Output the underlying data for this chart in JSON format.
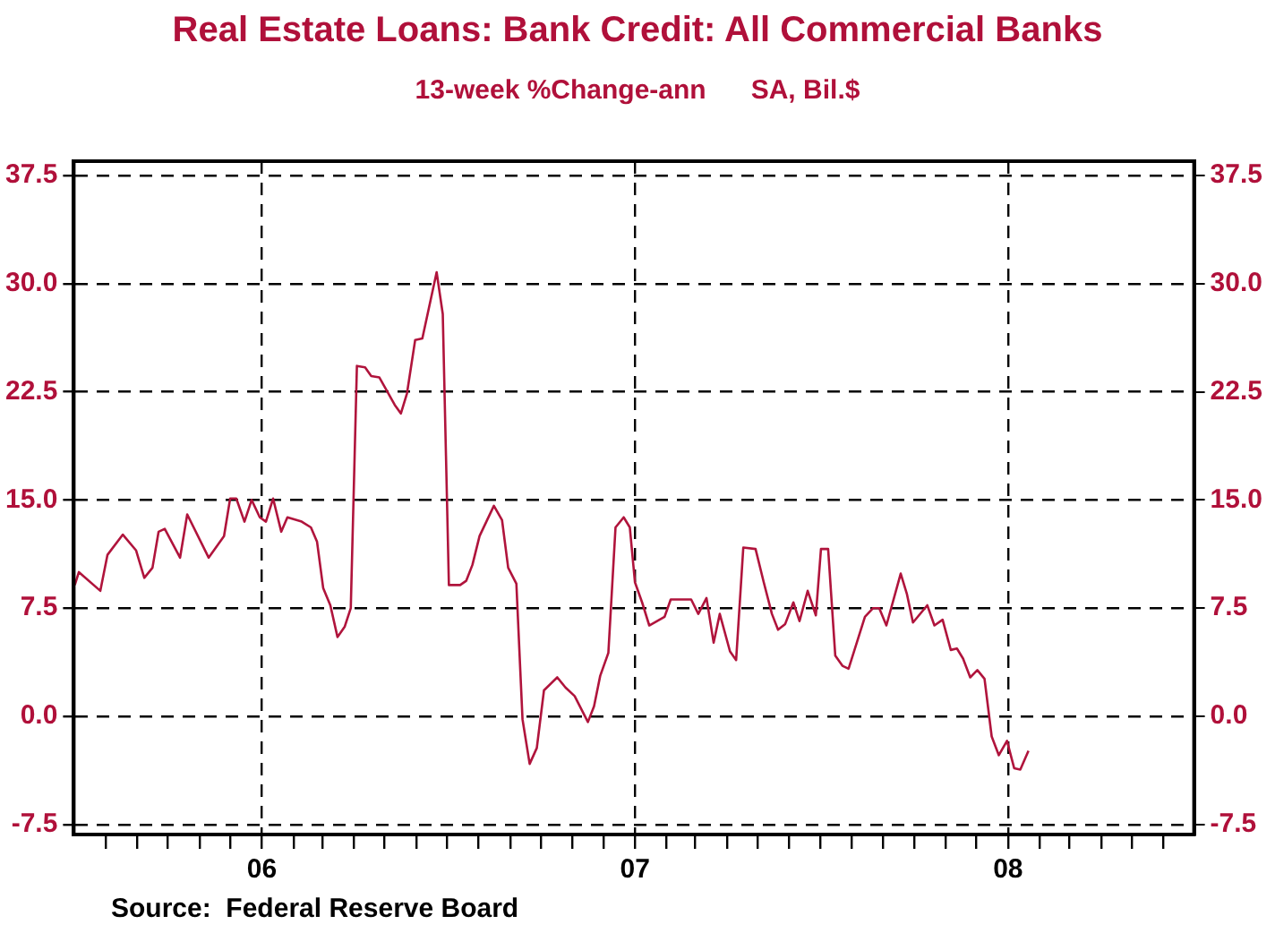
{
  "chart_data": {
    "type": "line",
    "title": "Real Estate Loans: Bank Credit: All Commercial Banks",
    "subtitle": "13-week %Change-ann      SA, Bil.$",
    "x": [
      "2005-07-02",
      "2005-07-06",
      "2005-07-27",
      "2005-08-03",
      "2005-08-18",
      "2005-08-31",
      "2005-09-08",
      "2005-09-16",
      "2005-09-22",
      "2005-09-28",
      "2005-10-13",
      "2005-10-20",
      "2005-11-10",
      "2005-11-25",
      "2005-12-01",
      "2005-12-07",
      "2005-12-15",
      "2005-12-22",
      "2005-12-30",
      "2006-01-05",
      "2006-01-12",
      "2006-01-20",
      "2006-01-26",
      "2006-02-09",
      "2006-02-18",
      "2006-02-24",
      "2006-03-02",
      "2006-03-09",
      "2006-03-16",
      "2006-03-23",
      "2006-03-29",
      "2006-04-04",
      "2006-04-12",
      "2006-04-18",
      "2006-04-26",
      "2006-05-11",
      "2006-05-17",
      "2006-05-23",
      "2006-05-31",
      "2006-06-07",
      "2006-06-21",
      "2006-06-27",
      "2006-07-03",
      "2006-07-14",
      "2006-07-20",
      "2006-07-26",
      "2006-08-02",
      "2006-08-16",
      "2006-08-24",
      "2006-08-30",
      "2006-09-07",
      "2006-09-13",
      "2006-09-20",
      "2006-09-27",
      "2006-10-04",
      "2006-10-17",
      "2006-10-25",
      "2006-11-03",
      "2006-11-16",
      "2006-11-22",
      "2006-11-28",
      "2006-12-06",
      "2006-12-13",
      "2006-12-21",
      "2006-12-27",
      "2007-01-01",
      "2007-01-08",
      "2007-01-15",
      "2007-01-30",
      "2007-02-05",
      "2007-02-15",
      "2007-02-25",
      "2007-03-04",
      "2007-03-12",
      "2007-03-19",
      "2007-03-25",
      "2007-04-04",
      "2007-04-10",
      "2007-04-17",
      "2007-04-29",
      "2007-05-07",
      "2007-05-15",
      "2007-05-21",
      "2007-05-28",
      "2007-06-05",
      "2007-06-11",
      "2007-06-19",
      "2007-06-27",
      "2007-07-02",
      "2007-07-09",
      "2007-07-16",
      "2007-07-23",
      "2007-07-29",
      "2007-08-14",
      "2007-08-22",
      "2007-08-28",
      "2007-09-04",
      "2007-09-18",
      "2007-09-24",
      "2007-09-30",
      "2007-10-14",
      "2007-10-21",
      "2007-10-29",
      "2007-11-06",
      "2007-11-12",
      "2007-11-18",
      "2007-11-25",
      "2007-12-02",
      "2007-12-09",
      "2007-12-16",
      "2007-12-23",
      "2007-12-31",
      "2008-01-07",
      "2008-01-13",
      "2008-01-21"
    ],
    "series": [
      {
        "color": "#b0143c",
        "values": [
          9.1,
          10.0,
          8.7,
          11.2,
          12.6,
          11.5,
          9.6,
          10.3,
          12.8,
          13.0,
          11.0,
          14.0,
          11.0,
          12.5,
          15.1,
          15.1,
          13.5,
          15.0,
          13.8,
          13.5,
          15.1,
          12.8,
          13.8,
          13.5,
          13.1,
          12.1,
          8.9,
          7.7,
          5.5,
          6.2,
          7.5,
          24.3,
          24.2,
          23.6,
          23.5,
          21.6,
          21.0,
          22.4,
          26.1,
          26.2,
          30.8,
          27.9,
          9.1,
          9.1,
          9.4,
          10.5,
          12.5,
          14.6,
          13.6,
          10.3,
          9.2,
          -0.2,
          -3.3,
          -2.2,
          1.8,
          2.7,
          2.0,
          1.4,
          -0.4,
          0.7,
          2.8,
          4.4,
          13.1,
          13.8,
          13.1,
          9.3,
          7.9,
          6.3,
          6.9,
          8.1,
          8.1,
          8.1,
          7.1,
          8.2,
          5.1,
          7.1,
          4.5,
          3.9,
          11.7,
          11.6,
          9.3,
          7.1,
          6.0,
          6.4,
          7.9,
          6.6,
          8.7,
          7.0,
          11.6,
          11.6,
          4.2,
          3.5,
          3.3,
          6.9,
          7.5,
          7.5,
          6.3,
          9.9,
          8.5,
          6.5,
          7.7,
          6.3,
          6.7,
          4.6,
          4.7,
          4.0,
          2.7,
          3.2,
          2.6,
          -1.4,
          -2.7,
          -1.7,
          -3.6,
          -3.7,
          -2.4
        ]
      }
    ],
    "xlim": [
      "2005-07-01",
      "2008-07-01"
    ],
    "xticks": [
      {
        "value": "2005-08-01",
        "label": null
      },
      {
        "value": "2005-09-01",
        "label": null
      },
      {
        "value": "2005-10-01",
        "label": null
      },
      {
        "value": "2005-11-01",
        "label": null
      },
      {
        "value": "2005-12-01",
        "label": null
      },
      {
        "value": "2006-01-01",
        "label": "06"
      },
      {
        "value": "2006-02-01",
        "label": null
      },
      {
        "value": "2006-03-01",
        "label": null
      },
      {
        "value": "2006-04-01",
        "label": null
      },
      {
        "value": "2006-05-01",
        "label": null
      },
      {
        "value": "2006-06-01",
        "label": null
      },
      {
        "value": "2006-07-01",
        "label": null
      },
      {
        "value": "2006-08-01",
        "label": null
      },
      {
        "value": "2006-09-01",
        "label": null
      },
      {
        "value": "2006-10-01",
        "label": null
      },
      {
        "value": "2006-11-01",
        "label": null
      },
      {
        "value": "2006-12-01",
        "label": null
      },
      {
        "value": "2007-01-01",
        "label": "07"
      },
      {
        "value": "2007-02-01",
        "label": null
      },
      {
        "value": "2007-03-01",
        "label": null
      },
      {
        "value": "2007-04-01",
        "label": null
      },
      {
        "value": "2007-05-01",
        "label": null
      },
      {
        "value": "2007-06-01",
        "label": null
      },
      {
        "value": "2007-07-01",
        "label": null
      },
      {
        "value": "2007-08-01",
        "label": null
      },
      {
        "value": "2007-09-01",
        "label": null
      },
      {
        "value": "2007-10-01",
        "label": null
      },
      {
        "value": "2007-11-01",
        "label": null
      },
      {
        "value": "2007-12-01",
        "label": null
      },
      {
        "value": "2008-01-01",
        "label": "08"
      },
      {
        "value": "2008-02-01",
        "label": null
      },
      {
        "value": "2008-03-01",
        "label": null
      },
      {
        "value": "2008-04-01",
        "label": null
      },
      {
        "value": "2008-05-01",
        "label": null
      },
      {
        "value": "2008-06-01",
        "label": null
      }
    ],
    "ylim": [
      -8.2,
      38.5
    ],
    "yticks": [
      {
        "value": -7.5,
        "label": "-7.5"
      },
      {
        "value": 0,
        "label": "0.0"
      },
      {
        "value": 7.5,
        "label": "7.5"
      },
      {
        "value": 15,
        "label": "15.0"
      },
      {
        "value": 22.5,
        "label": "22.5"
      },
      {
        "value": 30,
        "label": "30.0"
      },
      {
        "value": 37.5,
        "label": "37.5"
      }
    ],
    "y2lim": [
      -8.2,
      38.5
    ],
    "y2ticks": [
      {
        "value": -7.5,
        "label": "-7.5"
      },
      {
        "value": 0,
        "label": "0.0"
      },
      {
        "value": 7.5,
        "label": "7.5"
      },
      {
        "value": 15,
        "label": "15.0"
      },
      {
        "value": 22.5,
        "label": "22.5"
      },
      {
        "value": 30,
        "label": "30.0"
      },
      {
        "value": 37.5,
        "label": "37.5"
      }
    ],
    "grid": true,
    "annotations": [
      "Source:  Federal Reserve Board"
    ]
  }
}
